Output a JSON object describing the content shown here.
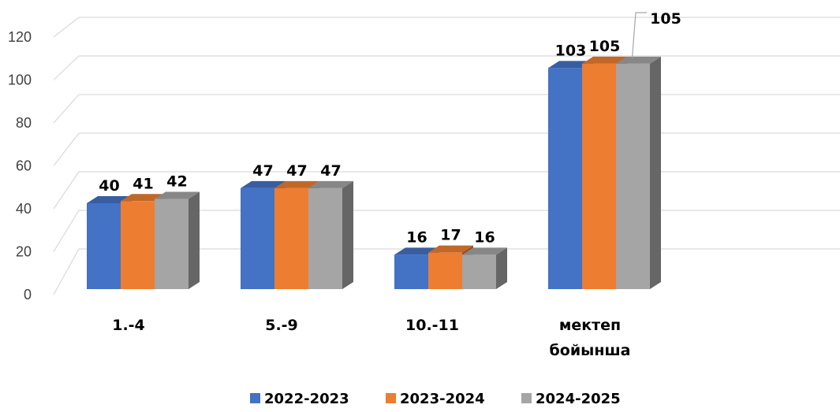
{
  "chart_data": {
    "type": "bar",
    "categories": [
      "1.-4",
      "5.-9",
      "10.-11",
      "мектеп бойынша"
    ],
    "category_lines": [
      [
        "1.-4"
      ],
      [
        "5.-9"
      ],
      [
        "10.-11"
      ],
      [
        "мектеп",
        "бойынша"
      ]
    ],
    "series": [
      {
        "name": "2022-2023",
        "color": "#4472C4",
        "values": [
          40,
          47,
          16,
          103
        ]
      },
      {
        "name": "2023-2024",
        "color": "#ED7D31",
        "values": [
          41,
          47,
          17,
          105
        ]
      },
      {
        "name": "2024-2025",
        "color": "#A5A5A5",
        "values": [
          42,
          47,
          16,
          105
        ]
      }
    ],
    "data_labels": [
      [
        "40",
        "47",
        "16",
        "103"
      ],
      [
        "41",
        "47",
        "17",
        "105"
      ],
      [
        "42",
        "47",
        "16",
        "105"
      ]
    ],
    "y_ticks": [
      "0",
      "20",
      "40",
      "60",
      "80",
      "100",
      "120"
    ],
    "ylim": [
      0,
      120
    ],
    "grid": true,
    "legend_position": "bottom",
    "style": "3d-clustered-column"
  }
}
